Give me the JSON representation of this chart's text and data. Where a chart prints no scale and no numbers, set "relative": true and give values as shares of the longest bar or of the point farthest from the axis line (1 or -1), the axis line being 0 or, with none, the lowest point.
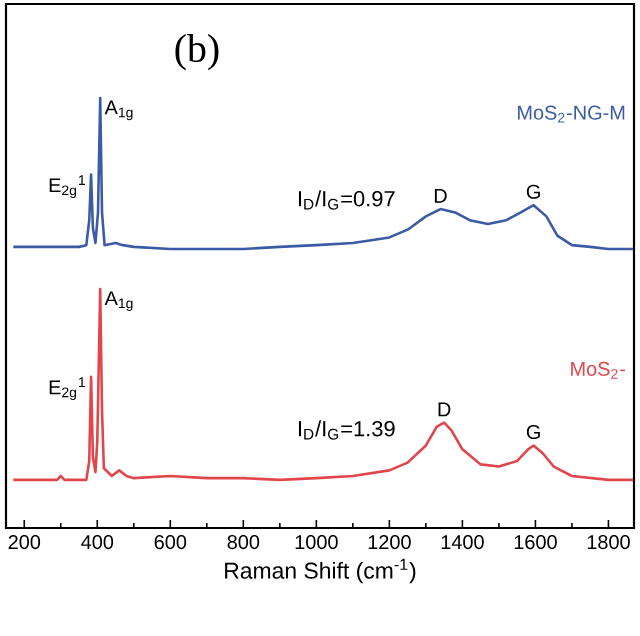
{
  "chart_data": {
    "type": "line",
    "relative": true,
    "xlabel": "Raman Shift (cm$^{-1}$)",
    "xlim": [
      150,
      1870
    ],
    "xticks": [
      200,
      400,
      600,
      800,
      1000,
      1200,
      1400,
      1600,
      1800
    ],
    "legend": false,
    "grid": false,
    "marker": "none",
    "line_style": "solid",
    "annotations": [
      "(b)",
      {
        "text": "E$_{2g}$$^{1}$",
        "x": 383,
        "y": 0.822
      },
      {
        "text": "A$_{1g}$",
        "x": 408,
        "y": 1.0
      },
      "I$_{D}$/I$_{G}$=0.97",
      {
        "text": "D",
        "x": 1340,
        "y": 0.742
      },
      {
        "text": "G",
        "x": 1595,
        "y": 0.751
      },
      {
        "text": "E$_{2g}$$^{1}$",
        "x": 383,
        "y": 0.352
      },
      {
        "text": "A$_{1g}$",
        "x": 408,
        "y": 0.556
      },
      "I$_{D}$/I$_{G}$=1.39",
      {
        "text": "D",
        "x": 1350,
        "y": 0.245
      },
      {
        "text": "G",
        "x": 1595,
        "y": 0.192
      }
    ],
    "series": [
      {
        "name": "MoS$_{2}$-NG-M",
        "color": "#3b5ba5",
        "x": [
          170,
          250,
          300,
          350,
          370,
          378,
          383,
          388,
          395,
          402,
          408,
          413,
          420,
          450,
          470,
          500,
          600,
          700,
          800,
          900,
          1000,
          1100,
          1200,
          1250,
          1300,
          1340,
          1380,
          1420,
          1470,
          1520,
          1560,
          1595,
          1630,
          1660,
          1700,
          1750,
          1800,
          1867
        ],
        "values": [
          0.654,
          0.654,
          0.654,
          0.654,
          0.658,
          0.716,
          0.822,
          0.698,
          0.663,
          0.734,
          1.0,
          0.734,
          0.658,
          0.663,
          0.658,
          0.654,
          0.649,
          0.649,
          0.649,
          0.654,
          0.658,
          0.663,
          0.676,
          0.694,
          0.725,
          0.742,
          0.734,
          0.716,
          0.707,
          0.716,
          0.734,
          0.751,
          0.725,
          0.68,
          0.658,
          0.654,
          0.649,
          0.649
        ]
      },
      {
        "name": "MoS$_{2}$-",
        "color": "#e0464b",
        "x": [
          170,
          290,
          300,
          310,
          370,
          378,
          383,
          388,
          395,
          400,
          408,
          413,
          418,
          440,
          460,
          480,
          500,
          600,
          700,
          800,
          900,
          1000,
          1100,
          1200,
          1250,
          1300,
          1330,
          1350,
          1370,
          1400,
          1450,
          1500,
          1550,
          1580,
          1595,
          1620,
          1650,
          1700,
          1800,
          1867
        ],
        "values": [
          0.112,
          0.112,
          0.121,
          0.112,
          0.112,
          0.156,
          0.352,
          0.165,
          0.13,
          0.201,
          0.556,
          0.272,
          0.139,
          0.121,
          0.134,
          0.121,
          0.116,
          0.121,
          0.116,
          0.116,
          0.112,
          0.116,
          0.121,
          0.134,
          0.152,
          0.192,
          0.236,
          0.245,
          0.227,
          0.183,
          0.148,
          0.143,
          0.156,
          0.183,
          0.192,
          0.174,
          0.143,
          0.121,
          0.112,
          0.112
        ]
      }
    ]
  }
}
